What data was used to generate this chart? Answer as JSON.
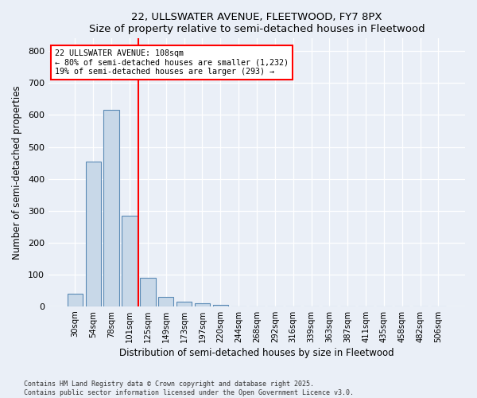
{
  "title1": "22, ULLSWATER AVENUE, FLEETWOOD, FY7 8PX",
  "title2": "Size of property relative to semi-detached houses in Fleetwood",
  "xlabel": "Distribution of semi-detached houses by size in Fleetwood",
  "ylabel": "Number of semi-detached properties",
  "categories": [
    "30sqm",
    "54sqm",
    "78sqm",
    "101sqm",
    "125sqm",
    "149sqm",
    "173sqm",
    "197sqm",
    "220sqm",
    "244sqm",
    "268sqm",
    "292sqm",
    "316sqm",
    "339sqm",
    "363sqm",
    "387sqm",
    "411sqm",
    "435sqm",
    "458sqm",
    "482sqm",
    "506sqm"
  ],
  "values": [
    40,
    455,
    615,
    285,
    90,
    30,
    15,
    10,
    5,
    0,
    0,
    0,
    0,
    0,
    0,
    0,
    0,
    0,
    0,
    0,
    0
  ],
  "bar_color": "#c8d8e8",
  "bar_edge_color": "#5a8ab5",
  "vline_x": 3.5,
  "vline_color": "red",
  "annotation_title": "22 ULLSWATER AVENUE: 108sqm",
  "annotation_line1": "← 80% of semi-detached houses are smaller (1,232)",
  "annotation_line2": "19% of semi-detached houses are larger (293) →",
  "ylim": [
    0,
    840
  ],
  "yticks": [
    0,
    100,
    200,
    300,
    400,
    500,
    600,
    700,
    800
  ],
  "footer1": "Contains HM Land Registry data © Crown copyright and database right 2025.",
  "footer2": "Contains public sector information licensed under the Open Government Licence v3.0.",
  "bg_color": "#eaeff7",
  "plot_bg_color": "#eaeff7"
}
